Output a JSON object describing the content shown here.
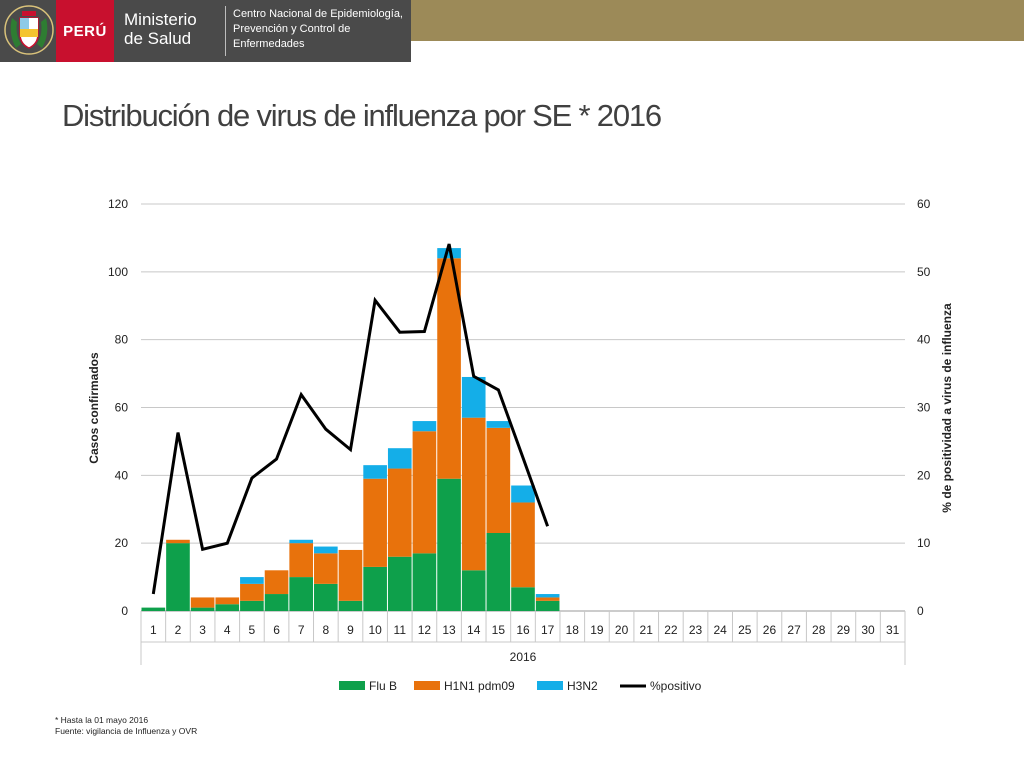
{
  "header": {
    "country": "PERÚ",
    "ministry_line1": "Ministerio",
    "ministry_line2": "de Salud",
    "center_line1": "Centro Nacional de Epidemiología,",
    "center_line2": "Prevención y Control de",
    "center_line3": "Enfermedades",
    "colors": {
      "dark": "#4a4a4a",
      "red": "#c8102e",
      "gold": "#9c8a58"
    }
  },
  "title": "Distribución de virus de influenza  por  SE *  2016",
  "footnotes": {
    "line1": "* Hasta la 01 mayo 2016",
    "line2": "Fuente: vigilancia de Influenza y OVR"
  },
  "chart_data": {
    "type": "bar",
    "stacked": true,
    "categories": [
      "1",
      "2",
      "3",
      "4",
      "5",
      "6",
      "7",
      "8",
      "9",
      "10",
      "11",
      "12",
      "13",
      "14",
      "15",
      "16",
      "17",
      "18",
      "19",
      "20",
      "21",
      "22",
      "23",
      "24",
      "25",
      "26",
      "27",
      "28",
      "29",
      "30",
      "31"
    ],
    "group_label": "2016",
    "ylabel": "Casos confirmados",
    "ylim": [
      0,
      120
    ],
    "yticks": [
      0,
      20,
      40,
      60,
      80,
      100,
      120
    ],
    "y2label": "% de positividad a virus de influenza",
    "y2lim": [
      0,
      60
    ],
    "y2ticks": [
      0,
      10,
      20,
      30,
      40,
      50,
      60
    ],
    "grid": true,
    "legend_position": "bottom",
    "series": [
      {
        "name": "Flu B",
        "color": "#0ea04b",
        "values": [
          1,
          20,
          1,
          2,
          3,
          5,
          10,
          8,
          3,
          13,
          16,
          17,
          39,
          12,
          23,
          7,
          3,
          null,
          null,
          null,
          null,
          null,
          null,
          null,
          null,
          null,
          null,
          null,
          null,
          null,
          null
        ]
      },
      {
        "name": "H1N1 pdm09",
        "color": "#e8720c",
        "values": [
          0,
          1,
          3,
          2,
          5,
          7,
          10,
          9,
          15,
          26,
          26,
          36,
          65,
          45,
          31,
          25,
          1,
          null,
          null,
          null,
          null,
          null,
          null,
          null,
          null,
          null,
          null,
          null,
          null,
          null,
          null
        ]
      },
      {
        "name": "H3N2",
        "color": "#14aee8",
        "values": [
          0,
          0,
          0,
          0,
          2,
          0,
          1,
          2,
          0,
          4,
          6,
          3,
          3,
          12,
          2,
          5,
          1,
          null,
          null,
          null,
          null,
          null,
          null,
          null,
          null,
          null,
          null,
          null,
          null,
          null,
          null
        ]
      }
    ],
    "line_series": {
      "name": "%positivo",
      "axis": "right",
      "color": "#000000",
      "values": [
        2.5,
        26.3,
        9.1,
        10,
        19.6,
        22.4,
        31.9,
        26.8,
        23.8,
        45.8,
        41.1,
        41.2,
        54.1,
        34.6,
        32.6,
        22.6,
        12.5,
        null,
        null,
        null,
        null,
        null,
        null,
        null,
        null,
        null,
        null,
        null,
        null,
        null,
        null
      ]
    }
  }
}
